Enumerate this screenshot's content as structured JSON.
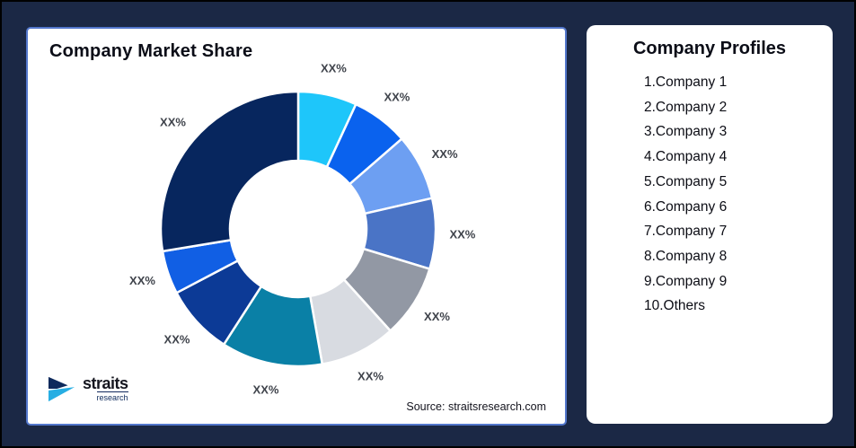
{
  "page": {
    "background_color": "#1B2845",
    "card_border_color": "#5377CC"
  },
  "left_card": {
    "title": "Company Market Share",
    "source": "Source: straitsresearch.com",
    "logo": {
      "name": "straits",
      "sub": "research",
      "icon_navy": "#0E2A5C",
      "icon_cyan": "#27AEE3"
    }
  },
  "right_card": {
    "title": "Company Profiles",
    "items": [
      "1.Company 1",
      "2.Company 2",
      "3.Company 3",
      "4.Company 4",
      "5.Company 5",
      "6.Company 6",
      "7.Company 7",
      "8.Company 8",
      "9.Company 9",
      "10.Others"
    ]
  },
  "chart_data": {
    "type": "pie",
    "subtype": "donut",
    "title": "Company Market Share",
    "start_angle_deg": 0,
    "direction": "clockwise",
    "inner_radius_ratio": 0.5,
    "note": "all slice data labels are placeholder text XX%",
    "segments": [
      {
        "label": "XX%",
        "value": 6.9,
        "color": "#1EC6FA"
      },
      {
        "label": "XX%",
        "value": 6.7,
        "color": "#0A62EE"
      },
      {
        "label": "XX%",
        "value": 7.8,
        "color": "#6D9FF2"
      },
      {
        "label": "XX%",
        "value": 8.3,
        "color": "#4A74C6"
      },
      {
        "label": "XX%",
        "value": 8.6,
        "color": "#9298A4"
      },
      {
        "label": "XX%",
        "value": 8.9,
        "color": "#D8DBE1"
      },
      {
        "label": "XX%",
        "value": 11.9,
        "color": "#0A80A6"
      },
      {
        "label": "XX%",
        "value": 8.2,
        "color": "#0C3A96"
      },
      {
        "label": "XX%",
        "value": 5.1,
        "color": "#115FE4"
      },
      {
        "label": "XX%",
        "value": 27.6,
        "color": "#07265E"
      }
    ]
  }
}
